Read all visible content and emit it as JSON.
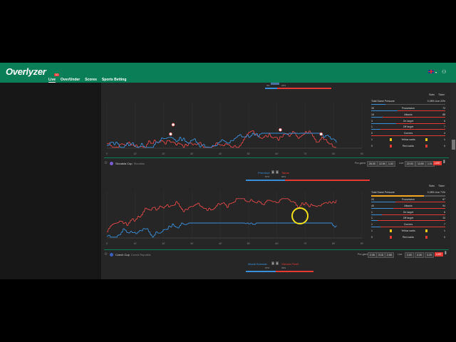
{
  "header": {
    "logo": "Overlyzer",
    "nav": [
      "Live",
      "Over/Under",
      "Scores",
      "Sports Betting"
    ],
    "live_badge": "10"
  },
  "top_match_partial": {
    "possession_home": "0%",
    "possession_away": "22%",
    "tabs": [
      "Stats",
      "Ticker"
    ],
    "stats": {
      "pressure_label": "Total Game Pressure",
      "pressure_value": "0 28%  Live 22%",
      "rows": [
        {
          "label": "Possession",
          "home": "39",
          "away": "72"
        },
        {
          "label": "Attacks",
          "home": "16",
          "away": "88"
        },
        {
          "label": "On target",
          "home": "3",
          "away": "6"
        },
        {
          "label": "Off target",
          "home": "1",
          "away": "7"
        },
        {
          "label": "Corners",
          "home": "0",
          "away": "4"
        },
        {
          "label": "Yellow cards",
          "home": "1",
          "away": "1"
        },
        {
          "label": "Red cards",
          "home": "0",
          "away": "0"
        }
      ]
    },
    "x_ticks": [
      "0'",
      "10'",
      "20'",
      "30'",
      "40'",
      "50'",
      "60'",
      "70'",
      "80'",
      "90'"
    ]
  },
  "match2": {
    "competition": "Slovakia Cup",
    "country": "Slovakia",
    "home": "Prievidza",
    "away": "Tatran",
    "score_home": "0",
    "score_away": "0",
    "possession_home": "57%",
    "possession_away": "34%",
    "prematch_label": "Pre-game",
    "prematch_odds": [
      "26.00",
      "12.50",
      "1.02"
    ],
    "live_label": "Live",
    "live_odds": [
      "22.00",
      "13.50",
      "1.01"
    ],
    "live_button": "LIVE",
    "tabs": [
      "Stats",
      "Ticker"
    ],
    "stats": {
      "pressure_label": "Total Game Pressure",
      "pressure_value": "0 28%  Live 71%",
      "rows": [
        {
          "label": "Possession",
          "home": "33",
          "away": "67"
        },
        {
          "label": "Attacks",
          "home": "40",
          "away": "94"
        },
        {
          "label": "On target",
          "home": "1",
          "away": "6"
        },
        {
          "label": "Off target",
          "home": "1",
          "away": "10"
        },
        {
          "label": "Corners",
          "home": "1",
          "away": "7"
        },
        {
          "label": "Yellow cards",
          "home": "1",
          "away": "1"
        },
        {
          "label": "Red cards",
          "home": "0",
          "away": "0"
        }
      ]
    },
    "x_ticks": [
      "0'",
      "10'",
      "20'",
      "30'",
      "40'",
      "50'",
      "60'",
      "70'",
      "80'",
      "90'"
    ]
  },
  "match3": {
    "competition": "Czech Cup",
    "country": "Czech Republic",
    "home": "Mladá Boleslav",
    "away": "Viktoria Plzeň",
    "score_home": "0",
    "score_away": "0",
    "possession_home": "67%",
    "possession_away": "33%",
    "prematch_label": "Pre-game",
    "prematch_odds": [
      "2.35",
      "3.15",
      "2.68"
    ],
    "live_label": "Live",
    "live_odds": [
      "2.00",
      "3.30",
      "3.25"
    ],
    "live_button": "LIVE"
  },
  "colors": {
    "brand": "#0a7e57",
    "home": "#3b8fd9",
    "away": "#e53935"
  }
}
